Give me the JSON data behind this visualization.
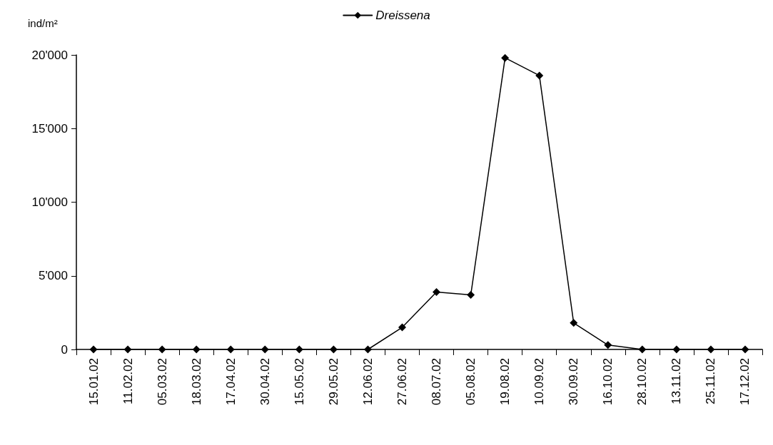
{
  "chart_data": {
    "type": "line",
    "ylabel": "ind/m²",
    "categories": [
      "15.01.02",
      "11.02.02",
      "05.03.02",
      "18.03.02",
      "17.04.02",
      "30.04.02",
      "15.05.02",
      "29.05.02",
      "12.06.02",
      "27.06.02",
      "08.07.02",
      "05.08.02",
      "19.08.02",
      "10.09.02",
      "30.09.02",
      "16.10.02",
      "28.10.02",
      "13.11.02",
      "25.11.02",
      "17.12.02"
    ],
    "series": [
      {
        "name": "Dreissena",
        "color": "#000000",
        "values": [
          0,
          0,
          0,
          0,
          0,
          0,
          0,
          0,
          0,
          1500,
          3900,
          3700,
          19800,
          18600,
          1800,
          300,
          0,
          0,
          0,
          0
        ]
      }
    ],
    "ylim": [
      0,
      20000
    ],
    "yticks": [
      {
        "value": 0,
        "label": "0"
      },
      {
        "value": 5000,
        "label": "5'000"
      },
      {
        "value": 10000,
        "label": "10'000"
      },
      {
        "value": 15000,
        "label": "15'000"
      },
      {
        "value": 20000,
        "label": "20'000"
      }
    ],
    "grid": false,
    "legend": "top",
    "marker": "diamond",
    "line_style": "solid"
  }
}
